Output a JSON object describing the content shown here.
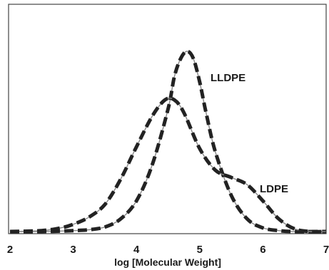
{
  "chart_data": {
    "type": "line",
    "title": "",
    "xlabel": "log [Molecular Weight]",
    "ylabel": "",
    "xlim": [
      2,
      7
    ],
    "ylim": [
      0,
      1.0
    ],
    "x_ticks": [
      "2",
      "3",
      "4",
      "5",
      "6",
      "7"
    ],
    "grid": false,
    "legend": "none",
    "line_style": "dashed",
    "series": [
      {
        "name": "LLDPE",
        "x": [
          2.0,
          2.5,
          3.0,
          3.25,
          3.5,
          3.75,
          4.0,
          4.25,
          4.5,
          4.6,
          4.7,
          4.8,
          4.9,
          5.0,
          5.1,
          5.25,
          5.5,
          5.75,
          6.0,
          6.25,
          6.5,
          7.0
        ],
        "y": [
          0.0,
          0.0,
          0.005,
          0.01,
          0.025,
          0.07,
          0.17,
          0.37,
          0.68,
          0.86,
          0.96,
          1.0,
          0.96,
          0.83,
          0.66,
          0.44,
          0.2,
          0.07,
          0.02,
          0.005,
          0.0,
          0.0
        ]
      },
      {
        "name": "LDPE",
        "x": [
          2.0,
          2.5,
          2.8,
          3.0,
          3.25,
          3.5,
          3.75,
          4.0,
          4.25,
          4.45,
          4.6,
          4.75,
          5.0,
          5.25,
          5.5,
          5.75,
          6.0,
          6.25,
          6.5,
          6.75,
          7.0
        ],
        "y": [
          0.0,
          0.005,
          0.02,
          0.04,
          0.08,
          0.15,
          0.29,
          0.47,
          0.64,
          0.73,
          0.73,
          0.66,
          0.46,
          0.34,
          0.3,
          0.26,
          0.17,
          0.07,
          0.015,
          0.0,
          0.0
        ]
      }
    ],
    "colors": {
      "curve": "#222222",
      "stroke_under": "#888888",
      "frame": "#444444"
    }
  }
}
